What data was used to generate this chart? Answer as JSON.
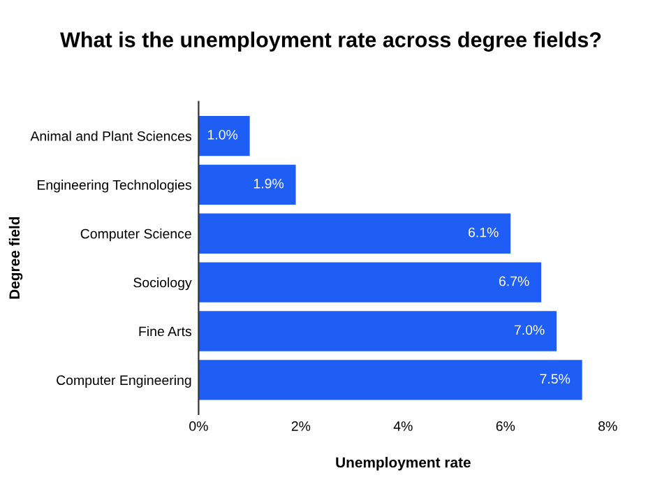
{
  "chart_data": {
    "type": "bar",
    "orientation": "horizontal",
    "title": "What is the unemployment rate across degree fields?",
    "xlabel": "Unemployment rate",
    "ylabel": "Degree field",
    "categories": [
      "Animal and Plant Sciences",
      "Engineering Technologies",
      "Computer Science",
      "Sociology",
      "Fine Arts",
      "Computer Engineering"
    ],
    "values": [
      1.0,
      1.9,
      6.1,
      6.7,
      7.0,
      7.5
    ],
    "value_labels": [
      "1.0%",
      "1.9%",
      "6.1%",
      "6.7%",
      "7.0%",
      "7.5%"
    ],
    "color": "#1f5ef5",
    "xlim": [
      0,
      8
    ],
    "xticks": [
      {
        "value": 0,
        "label": "0%"
      },
      {
        "value": 2,
        "label": "2%"
      },
      {
        "value": 4,
        "label": "4%"
      },
      {
        "value": 6,
        "label": "6%"
      },
      {
        "value": 8,
        "label": "8%"
      }
    ],
    "grid": false,
    "legend": false
  }
}
